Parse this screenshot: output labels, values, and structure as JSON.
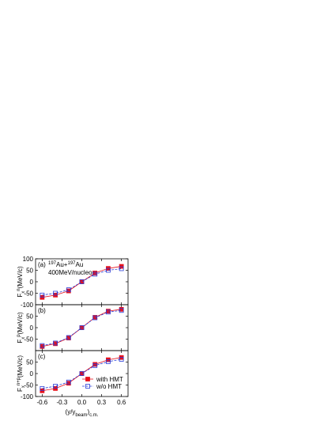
{
  "chart_data": [
    {
      "type": "line",
      "panel_label": "(a)",
      "annotation": [
        {
          "text": "197",
          "shift": "sup"
        },
        {
          "text": "Au+"
        },
        {
          "text": "197",
          "shift": "sup"
        },
        {
          "text": "Au"
        }
      ],
      "annotation2": "400MeV/nucleon",
      "ylabel": [
        {
          "text": "F"
        },
        {
          "text": "x",
          "shift": "sub"
        },
        {
          "text": "n",
          "shift": "sup"
        },
        {
          "text": "(MeV/c)"
        }
      ],
      "x": [
        -0.6,
        -0.4,
        -0.2,
        0,
        0.2,
        0.4,
        0.6
      ],
      "series": [
        {
          "name": "with HMT",
          "color": "#e8101a",
          "values": [
            -68,
            -58,
            -40,
            0,
            38,
            58,
            67
          ]
        },
        {
          "name": "w/o HMT",
          "color": "#2a3fd8",
          "values": [
            -58,
            -50,
            -35,
            0,
            33,
            50,
            57
          ]
        }
      ],
      "xlim": [
        -0.7,
        0.7
      ],
      "ylim": [
        -100,
        100
      ],
      "yticks": [
        -100,
        -50,
        0,
        50,
        100
      ]
    },
    {
      "type": "line",
      "panel_label": "(b)",
      "ylabel": [
        {
          "text": "F"
        },
        {
          "text": "x",
          "shift": "sub"
        },
        {
          "text": "p",
          "shift": "sup"
        },
        {
          "text": "(MeV/c)"
        }
      ],
      "x": [
        -0.6,
        -0.4,
        -0.2,
        0,
        0.2,
        0.4,
        0.6
      ],
      "series": [
        {
          "name": "with HMT",
          "color": "#e8101a",
          "values": [
            -82,
            -70,
            -45,
            0,
            45,
            72,
            80
          ]
        },
        {
          "name": "w/o HMT",
          "color": "#2a3fd8",
          "values": [
            -78,
            -67,
            -43,
            0,
            43,
            68,
            75
          ]
        }
      ],
      "xlim": [
        -0.7,
        0.7
      ],
      "ylim": [
        -100,
        100
      ],
      "yticks": [
        -50,
        0,
        50
      ]
    },
    {
      "type": "line",
      "panel_label": "(c)",
      "ylabel": [
        {
          "text": "F"
        },
        {
          "text": "x",
          "shift": "sub"
        },
        {
          "text": "n+p",
          "shift": "sup"
        },
        {
          "text": "(MeV/c)"
        }
      ],
      "xlabel": [
        {
          "text": "(y/y"
        },
        {
          "text": "beam",
          "shift": "sub"
        },
        {
          "text": ")"
        },
        {
          "text": "c.m.",
          "shift": "sub"
        }
      ],
      "x": [
        -0.6,
        -0.4,
        -0.2,
        0,
        0.2,
        0.4,
        0.6
      ],
      "series": [
        {
          "name": "with HMT",
          "color": "#e8101a",
          "values": [
            -75,
            -65,
            -42,
            0,
            40,
            60,
            70
          ]
        },
        {
          "name": "w/o HMT",
          "color": "#2a3fd8",
          "values": [
            -65,
            -55,
            -37,
            0,
            35,
            52,
            62
          ]
        }
      ],
      "xlim": [
        -0.7,
        0.7
      ],
      "ylim": [
        -100,
        100
      ],
      "yticks": [
        -100,
        -50,
        0,
        50
      ],
      "xticks": [
        -0.6,
        -0.3,
        {
          "value": 0,
          "label": "0.0"
        },
        0.3,
        0.6
      ],
      "legend": "lower right"
    }
  ]
}
